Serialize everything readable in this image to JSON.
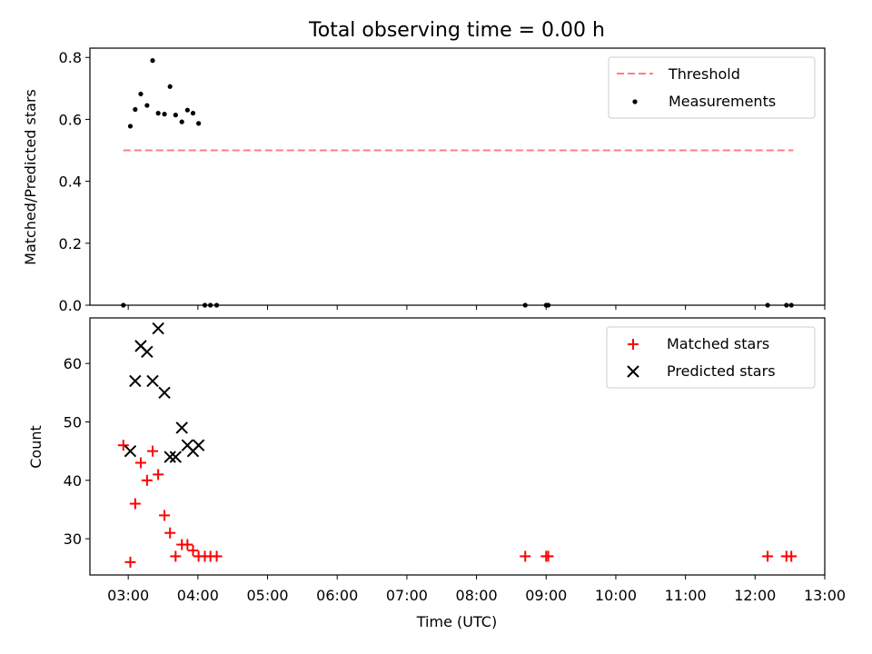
{
  "chart_data": [
    {
      "type": "scatter",
      "title": "Total observing time = 0.00 h",
      "xlabel": "",
      "ylabel": "Matched/Predicted stars",
      "xlim_hours": [
        2.45,
        13.0
      ],
      "ylim": [
        0,
        0.83
      ],
      "yticks": [
        0.0,
        0.2,
        0.4,
        0.6,
        0.8
      ],
      "ytick_labels": [
        "0.0",
        "0.2",
        "0.4",
        "0.6",
        "0.8"
      ],
      "legend_position": "top-right",
      "series": [
        {
          "name": "Threshold",
          "kind": "line",
          "style": "dashed",
          "color": "#ff7f7f",
          "x": [
            2.93,
            12.55
          ],
          "y": [
            0.5,
            0.5
          ]
        },
        {
          "name": "Measurements",
          "kind": "scatter",
          "marker": "dot",
          "color": "#000000",
          "x": [
            2.93,
            3.03,
            3.1,
            3.18,
            3.27,
            3.35,
            3.43,
            3.52,
            3.6,
            3.68,
            3.77,
            3.85,
            3.93,
            4.01,
            4.1,
            4.18,
            4.27,
            8.7,
            9.0,
            9.03,
            12.18,
            12.45,
            12.52
          ],
          "y": [
            0.0,
            0.578,
            0.632,
            0.682,
            0.645,
            0.79,
            0.62,
            0.617,
            0.706,
            0.614,
            0.592,
            0.63,
            0.62,
            0.587,
            0.0,
            0.0,
            0.0,
            0.0,
            0.0,
            0.0,
            0.0,
            0.0,
            0.0
          ]
        }
      ]
    },
    {
      "type": "scatter",
      "title": "",
      "xlabel": "Time (UTC)",
      "ylabel": "Count",
      "xlim_hours": [
        2.45,
        13.0
      ],
      "ylim": [
        23.8,
        67.8
      ],
      "yticks": [
        30,
        40,
        50,
        60
      ],
      "ytick_labels": [
        "30",
        "40",
        "50",
        "60"
      ],
      "xticks_hours": [
        3,
        4,
        5,
        6,
        7,
        8,
        9,
        10,
        11,
        12,
        13
      ],
      "xtick_labels": [
        "03:00",
        "04:00",
        "05:00",
        "06:00",
        "07:00",
        "08:00",
        "09:00",
        "10:00",
        "11:00",
        "12:00",
        "13:00"
      ],
      "legend_position": "top-right",
      "series": [
        {
          "name": "Matched stars",
          "kind": "scatter",
          "marker": "plus",
          "color": "#ff0000",
          "x": [
            2.93,
            3.03,
            3.1,
            3.18,
            3.27,
            3.35,
            3.43,
            3.52,
            3.6,
            3.68,
            3.77,
            3.85,
            3.93,
            4.01,
            4.1,
            4.18,
            4.27,
            8.7,
            9.0,
            9.03,
            12.18,
            12.45,
            12.52
          ],
          "y": [
            46,
            26,
            36,
            43,
            40,
            45,
            41,
            34,
            31,
            27,
            29,
            29,
            28,
            27,
            27,
            27,
            27,
            27,
            27,
            27,
            27,
            27,
            27
          ]
        },
        {
          "name": "Predicted stars",
          "kind": "scatter",
          "marker": "x",
          "color": "#000000",
          "x": [
            3.03,
            3.1,
            3.18,
            3.27,
            3.35,
            3.43,
            3.52,
            3.6,
            3.68,
            3.77,
            3.85,
            3.93,
            4.01
          ],
          "y": [
            45,
            57,
            63,
            62,
            57,
            66,
            55,
            44,
            44,
            49,
            46,
            45,
            46
          ]
        }
      ]
    }
  ]
}
